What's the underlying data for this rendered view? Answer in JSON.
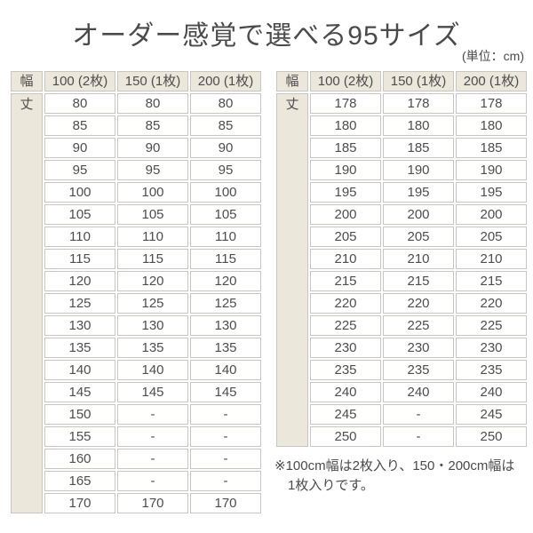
{
  "page": {
    "title": "オーダー感覚で選べる95サイズ",
    "unit_label": "(単位：cm)",
    "note_line1": "※100cm幅は2枚入り、150・200cm幅は",
    "note_line2": "1枚入りです。"
  },
  "table_header": {
    "width_label": "幅",
    "length_label": "丈",
    "columns": [
      "100 (2枚)",
      "150 (1枚)",
      "200 (1枚)"
    ]
  },
  "chart_data": [
    {
      "type": "table",
      "name": "length-sizes-80-170",
      "corner_header": "幅",
      "row_header": "丈",
      "columns": [
        "100 (2枚)",
        "150 (1枚)",
        "200 (1枚)"
      ],
      "rows": [
        [
          "80",
          "80",
          "80"
        ],
        [
          "85",
          "85",
          "85"
        ],
        [
          "90",
          "90",
          "90"
        ],
        [
          "95",
          "95",
          "95"
        ],
        [
          "100",
          "100",
          "100"
        ],
        [
          "105",
          "105",
          "105"
        ],
        [
          "110",
          "110",
          "110"
        ],
        [
          "115",
          "115",
          "115"
        ],
        [
          "120",
          "120",
          "120"
        ],
        [
          "125",
          "125",
          "125"
        ],
        [
          "130",
          "130",
          "130"
        ],
        [
          "135",
          "135",
          "135"
        ],
        [
          "140",
          "140",
          "140"
        ],
        [
          "145",
          "145",
          "145"
        ],
        [
          "150",
          "-",
          "-"
        ],
        [
          "155",
          "-",
          "-"
        ],
        [
          "160",
          "-",
          "-"
        ],
        [
          "165",
          "-",
          "-"
        ],
        [
          "170",
          "170",
          "170"
        ]
      ]
    },
    {
      "type": "table",
      "name": "length-sizes-178-250",
      "corner_header": "幅",
      "row_header": "丈",
      "columns": [
        "100 (2枚)",
        "150 (1枚)",
        "200 (1枚)"
      ],
      "rows": [
        [
          "178",
          "178",
          "178"
        ],
        [
          "180",
          "180",
          "180"
        ],
        [
          "185",
          "185",
          "185"
        ],
        [
          "190",
          "190",
          "190"
        ],
        [
          "195",
          "195",
          "195"
        ],
        [
          "200",
          "200",
          "200"
        ],
        [
          "205",
          "205",
          "205"
        ],
        [
          "210",
          "210",
          "210"
        ],
        [
          "215",
          "215",
          "215"
        ],
        [
          "220",
          "220",
          "220"
        ],
        [
          "225",
          "225",
          "225"
        ],
        [
          "230",
          "230",
          "230"
        ],
        [
          "235",
          "235",
          "235"
        ],
        [
          "240",
          "240",
          "240"
        ],
        [
          "245",
          "-",
          "245"
        ],
        [
          "250",
          "-",
          "250"
        ]
      ]
    }
  ],
  "colors": {
    "header_bg": "#ece7db",
    "cell_bg": "#ffffff",
    "border": "#c9c6c1",
    "text": "#4d4d4d"
  }
}
